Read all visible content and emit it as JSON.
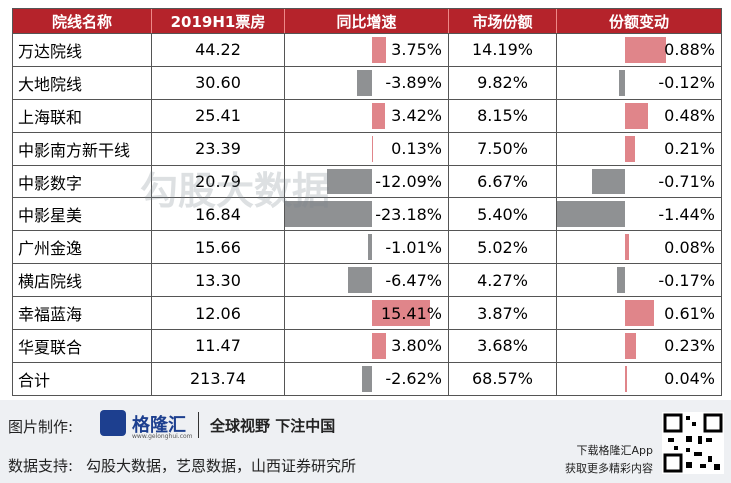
{
  "table": {
    "header": [
      "院线名称",
      "2019H1票房",
      "同比增速",
      "市场份额",
      "份额变动"
    ],
    "rows": [
      [
        "万达院线",
        "44.22",
        {
          "value": 3.75,
          "label": "3.75%"
        },
        "14.19%",
        {
          "value": 0.88,
          "label": "0.88%"
        }
      ],
      [
        "大地院线",
        "30.60",
        {
          "value": -3.89,
          "label": "-3.89%"
        },
        "9.82%",
        {
          "value": -0.12,
          "label": "-0.12%"
        }
      ],
      [
        "上海联和",
        "25.41",
        {
          "value": 3.42,
          "label": "3.42%"
        },
        "8.15%",
        {
          "value": 0.48,
          "label": "0.48%"
        }
      ],
      [
        "中影南方新干线",
        "23.39",
        {
          "value": 0.13,
          "label": "0.13%"
        },
        "7.50%",
        {
          "value": 0.21,
          "label": "0.21%"
        }
      ],
      [
        "中影数字",
        "20.79",
        {
          "value": -12.09,
          "label": "-12.09%"
        },
        "6.67%",
        {
          "value": -0.71,
          "label": "-0.71%"
        }
      ],
      [
        "中影星美",
        "16.84",
        {
          "value": -23.18,
          "label": "-23.18%"
        },
        "5.40%",
        {
          "value": -1.44,
          "label": "-1.44%"
        }
      ],
      [
        "广州金逸",
        "15.66",
        {
          "value": -1.01,
          "label": "-1.01%"
        },
        "5.02%",
        {
          "value": 0.08,
          "label": "0.08%"
        }
      ],
      [
        "横店院线",
        "13.30",
        {
          "value": -6.47,
          "label": "-6.47%"
        },
        "4.27%",
        {
          "value": -0.17,
          "label": "-0.17%"
        }
      ],
      [
        "幸福蓝海",
        "12.06",
        {
          "value": 15.41,
          "label": "15.41%"
        },
        "3.87%",
        {
          "value": 0.61,
          "label": "0.61%"
        }
      ],
      [
        "华夏联合",
        "11.47",
        {
          "value": 3.8,
          "label": "3.80%"
        },
        "3.68%",
        {
          "value": 0.23,
          "label": "0.23%"
        }
      ],
      [
        "合计",
        "213.74",
        {
          "value": -2.62,
          "label": "-2.62%"
        },
        "68.57%",
        {
          "value": 0.04,
          "label": "0.04%"
        }
      ]
    ]
  },
  "watermark": "勾股大数据",
  "footer": {
    "made_by_label": "图片制作:",
    "logo": "格隆汇",
    "logo_sub": "www.gelonghui.com",
    "slogan": "全球视野 下注中国",
    "source_label": "数据支持:",
    "sources": "勾股大数据，艺恩数据，山西证券研究所",
    "app_line1": "下载格隆汇App",
    "app_line2": "获取更多精彩内容"
  }
}
